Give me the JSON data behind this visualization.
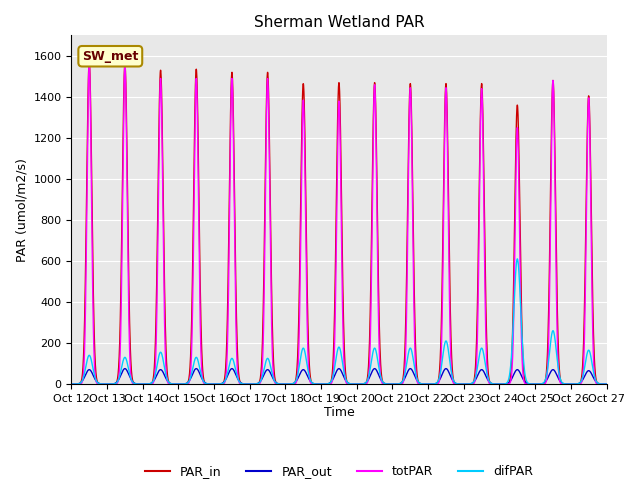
{
  "title": "Sherman Wetland PAR",
  "ylabel": "PAR (umol/m2/s)",
  "xlabel": "Time",
  "annotation": "SW_met",
  "ylim": [
    0,
    1700
  ],
  "yticks": [
    0,
    200,
    400,
    600,
    800,
    1000,
    1200,
    1400,
    1600
  ],
  "xtick_labels": [
    "Oct 12",
    "Oct 13",
    "Oct 14",
    "Oct 15",
    "Oct 16",
    "Oct 17",
    "Oct 18",
    "Oct 19",
    "Oct 20",
    "Oct 21",
    "Oct 22",
    "Oct 23",
    "Oct 24",
    "Oct 25",
    "Oct 26",
    "Oct 27"
  ],
  "colors": {
    "PAR_in": "#cc0000",
    "PAR_out": "#0000cc",
    "totPAR": "#ff00ff",
    "difPAR": "#00ccff"
  },
  "background_color": "#e8e8e8",
  "num_days": 15,
  "par_in_peaks": [
    1570,
    1560,
    1530,
    1535,
    1520,
    1520,
    1465,
    1470,
    1470,
    1465,
    1465,
    1465,
    1360,
    1480,
    1405
  ],
  "par_out_peaks": [
    70,
    75,
    70,
    75,
    75,
    70,
    70,
    75,
    75,
    75,
    75,
    70,
    70,
    70,
    65
  ],
  "totPAR_peaks": [
    1560,
    1545,
    1490,
    1490,
    1490,
    1490,
    1385,
    1380,
    1460,
    1445,
    1445,
    1440,
    1250,
    1480,
    1395
  ],
  "difPAR_peaks": [
    140,
    130,
    155,
    130,
    125,
    125,
    175,
    180,
    175,
    175,
    210,
    175,
    610,
    260,
    165
  ]
}
